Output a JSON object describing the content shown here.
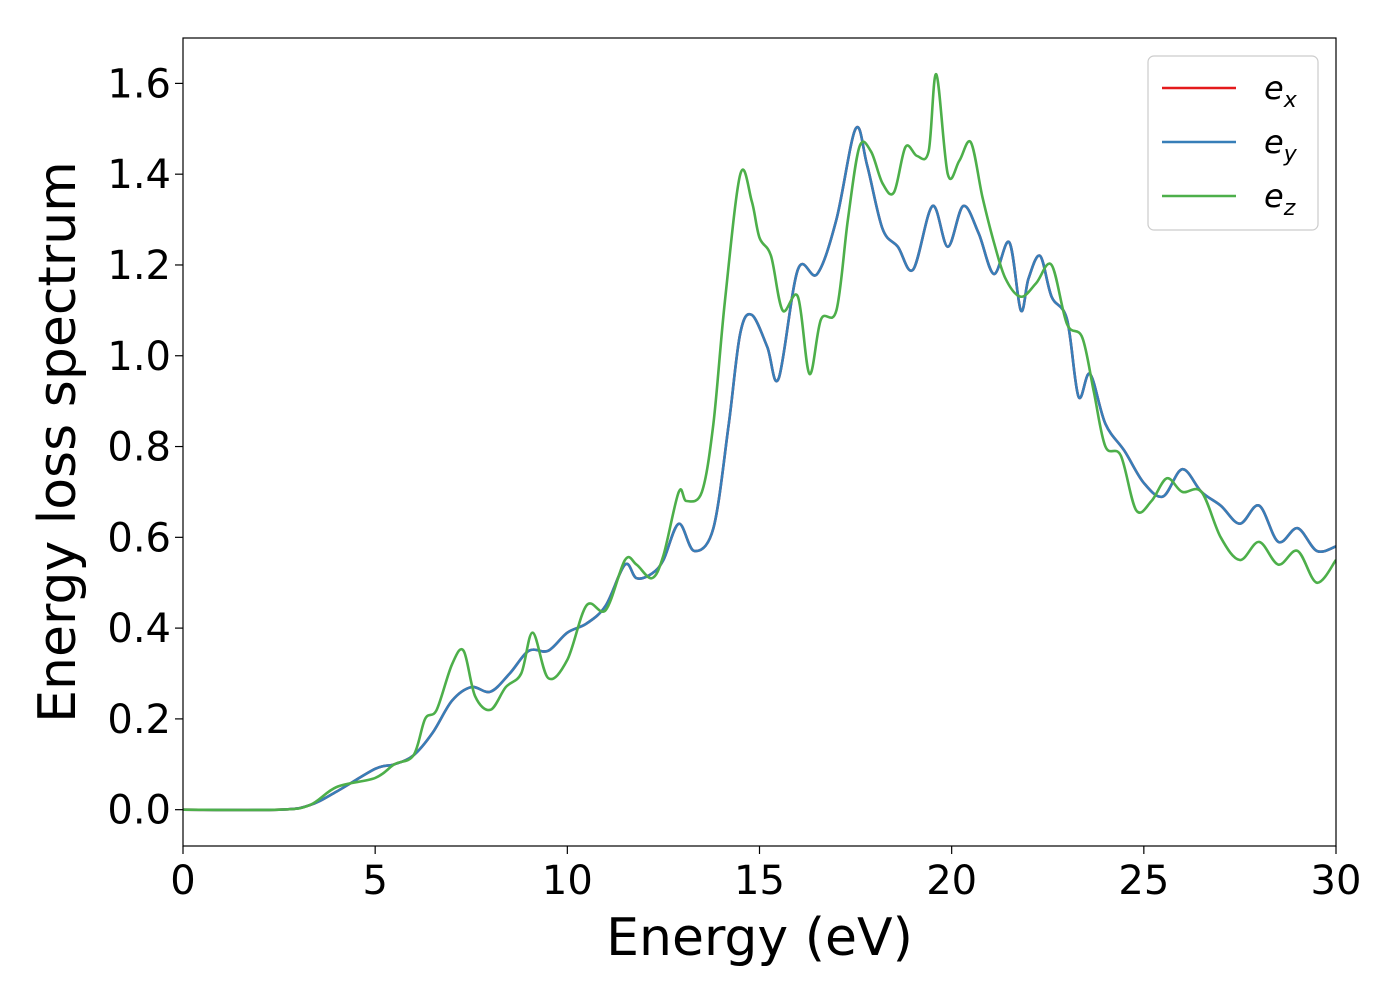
{
  "chart_data": {
    "type": "line",
    "xlabel": "Energy (eV)",
    "ylabel": "Energy loss spectrum",
    "xlim": [
      0,
      30
    ],
    "ylim": [
      -0.08,
      1.7
    ],
    "xticks": [
      0,
      5,
      10,
      15,
      20,
      25,
      30
    ],
    "xtick_labels": [
      "0",
      "5",
      "10",
      "15",
      "20",
      "25",
      "30"
    ],
    "yticks": [
      0.0,
      0.2,
      0.4,
      0.6,
      0.8,
      1.0,
      1.2,
      1.4,
      1.6
    ],
    "ytick_labels": [
      "0.0",
      "0.2",
      "0.4",
      "0.6",
      "0.8",
      "1.0",
      "1.2",
      "1.4",
      "1.6"
    ],
    "grid": false,
    "legend_position": "top-right",
    "series": [
      {
        "name": "e",
        "sub": "x",
        "color": "#e41a1c",
        "x": [
          0,
          2.5,
          3.3,
          4.0,
          5.0,
          5.5,
          6.0,
          6.5,
          7.0,
          7.5,
          8.0,
          8.5,
          9.0,
          9.5,
          10.0,
          10.5,
          11.0,
          11.5,
          11.8,
          12.2,
          12.5,
          12.9,
          13.3,
          13.8,
          14.2,
          14.5,
          14.8,
          15.2,
          15.5,
          16.0,
          16.5,
          17.0,
          17.5,
          17.8,
          18.2,
          18.6,
          19.0,
          19.5,
          19.9,
          20.3,
          20.7,
          21.1,
          21.5,
          21.8,
          22.0,
          22.3,
          22.6,
          23.0,
          23.3,
          23.6,
          24.0,
          24.5,
          25.0,
          25.5,
          26.0,
          26.5,
          27.0,
          27.5,
          28.0,
          28.5,
          29.0,
          29.5,
          30.0
        ],
        "values": [
          0.0,
          0.0,
          0.01,
          0.04,
          0.09,
          0.1,
          0.12,
          0.17,
          0.24,
          0.27,
          0.26,
          0.3,
          0.35,
          0.35,
          0.39,
          0.41,
          0.45,
          0.54,
          0.51,
          0.52,
          0.55,
          0.63,
          0.57,
          0.62,
          0.85,
          1.05,
          1.09,
          1.02,
          0.95,
          1.19,
          1.18,
          1.3,
          1.5,
          1.42,
          1.28,
          1.24,
          1.19,
          1.33,
          1.24,
          1.33,
          1.27,
          1.18,
          1.25,
          1.1,
          1.17,
          1.22,
          1.13,
          1.08,
          0.91,
          0.96,
          0.85,
          0.79,
          0.72,
          0.69,
          0.75,
          0.7,
          0.67,
          0.63,
          0.67,
          0.59,
          0.62,
          0.57,
          0.58
        ]
      },
      {
        "name": "e",
        "sub": "y",
        "color": "#377eb8",
        "x": [
          0,
          2.5,
          3.3,
          4.0,
          5.0,
          5.5,
          6.0,
          6.5,
          7.0,
          7.5,
          8.0,
          8.5,
          9.0,
          9.5,
          10.0,
          10.5,
          11.0,
          11.5,
          11.8,
          12.2,
          12.5,
          12.9,
          13.3,
          13.8,
          14.2,
          14.5,
          14.8,
          15.2,
          15.5,
          16.0,
          16.5,
          17.0,
          17.5,
          17.8,
          18.2,
          18.6,
          19.0,
          19.5,
          19.9,
          20.3,
          20.7,
          21.1,
          21.5,
          21.8,
          22.0,
          22.3,
          22.6,
          23.0,
          23.3,
          23.6,
          24.0,
          24.5,
          25.0,
          25.5,
          26.0,
          26.5,
          27.0,
          27.5,
          28.0,
          28.5,
          29.0,
          29.5,
          30.0
        ],
        "values": [
          0.0,
          0.0,
          0.01,
          0.04,
          0.09,
          0.1,
          0.12,
          0.17,
          0.24,
          0.27,
          0.26,
          0.3,
          0.35,
          0.35,
          0.39,
          0.41,
          0.45,
          0.54,
          0.51,
          0.52,
          0.55,
          0.63,
          0.57,
          0.62,
          0.85,
          1.05,
          1.09,
          1.02,
          0.95,
          1.19,
          1.18,
          1.3,
          1.5,
          1.42,
          1.28,
          1.24,
          1.19,
          1.33,
          1.24,
          1.33,
          1.27,
          1.18,
          1.25,
          1.1,
          1.17,
          1.22,
          1.13,
          1.08,
          0.91,
          0.96,
          0.85,
          0.79,
          0.72,
          0.69,
          0.75,
          0.7,
          0.67,
          0.63,
          0.67,
          0.59,
          0.62,
          0.57,
          0.58
        ]
      },
      {
        "name": "e",
        "sub": "z",
        "color": "#4daf4a",
        "x": [
          0,
          2.5,
          3.3,
          4.0,
          5.0,
          5.5,
          6.0,
          6.3,
          6.6,
          7.0,
          7.3,
          7.6,
          8.0,
          8.4,
          8.8,
          9.1,
          9.5,
          10.0,
          10.5,
          11.0,
          11.5,
          11.8,
          12.2,
          12.5,
          12.9,
          13.1,
          13.5,
          13.8,
          14.1,
          14.5,
          14.8,
          15.0,
          15.3,
          15.6,
          16.0,
          16.3,
          16.6,
          17.0,
          17.3,
          17.6,
          17.9,
          18.2,
          18.5,
          18.8,
          19.1,
          19.4,
          19.6,
          19.9,
          20.2,
          20.5,
          20.8,
          21.1,
          21.4,
          21.8,
          22.2,
          22.6,
          23.0,
          23.4,
          23.7,
          24.0,
          24.4,
          24.8,
          25.2,
          25.6,
          26.0,
          26.5,
          27.0,
          27.5,
          28.0,
          28.5,
          29.0,
          29.5,
          30.0
        ],
        "values": [
          0.0,
          0.0,
          0.01,
          0.05,
          0.07,
          0.1,
          0.12,
          0.2,
          0.22,
          0.32,
          0.35,
          0.25,
          0.22,
          0.27,
          0.3,
          0.39,
          0.29,
          0.33,
          0.45,
          0.44,
          0.55,
          0.54,
          0.51,
          0.56,
          0.7,
          0.68,
          0.7,
          0.85,
          1.12,
          1.4,
          1.34,
          1.26,
          1.22,
          1.1,
          1.13,
          0.96,
          1.08,
          1.1,
          1.3,
          1.46,
          1.45,
          1.38,
          1.36,
          1.46,
          1.44,
          1.45,
          1.62,
          1.4,
          1.43,
          1.47,
          1.35,
          1.25,
          1.17,
          1.13,
          1.16,
          1.2,
          1.07,
          1.04,
          0.92,
          0.8,
          0.78,
          0.66,
          0.68,
          0.73,
          0.7,
          0.7,
          0.6,
          0.55,
          0.59,
          0.54,
          0.57,
          0.5,
          0.55
        ]
      }
    ]
  }
}
